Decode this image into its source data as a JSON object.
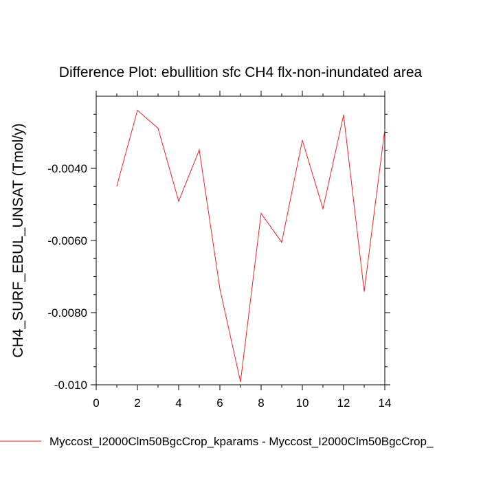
{
  "chart_data": {
    "type": "line",
    "title": "Difference Plot: ebullition sfc CH4 flx-non-inundated area",
    "ylabel": "CH4_SURF_EBUL_UNSAT  (Tmol/y)",
    "xlabel": "",
    "xlim": [
      0,
      14
    ],
    "ylim": [
      -0.01,
      -0.002
    ],
    "x_ticks": [
      0,
      2,
      4,
      6,
      8,
      10,
      12,
      14
    ],
    "x_tick_labels": [
      "0",
      "2",
      "4",
      "6",
      "8",
      "10",
      "12",
      "14"
    ],
    "y_ticks": [
      -0.01,
      -0.008,
      -0.006,
      -0.004
    ],
    "y_tick_labels": [
      "-0.010",
      "-0.0080",
      "-0.0060",
      "-0.0040"
    ],
    "grid": false,
    "series": [
      {
        "name": "Myccost_I2000Clm50BgcCrop_kparams - Myccost_I2000Clm50BgcCrop_",
        "color": "#e8262a",
        "x": [
          1,
          2,
          3,
          4,
          5,
          6,
          7,
          8,
          9,
          10,
          11,
          12,
          13,
          14
        ],
        "y": [
          -0.00449,
          -0.00239,
          -0.00289,
          -0.00491,
          -0.00349,
          -0.00734,
          -0.00992,
          -0.00525,
          -0.00605,
          -0.00322,
          -0.00512,
          -0.00252,
          -0.00741,
          -0.00292
        ]
      }
    ],
    "legend": {
      "placement": "bottom",
      "entries": [
        "Myccost_I2000Clm50BgcCrop_kparams - Myccost_I2000Clm50BgcCrop_"
      ]
    }
  }
}
